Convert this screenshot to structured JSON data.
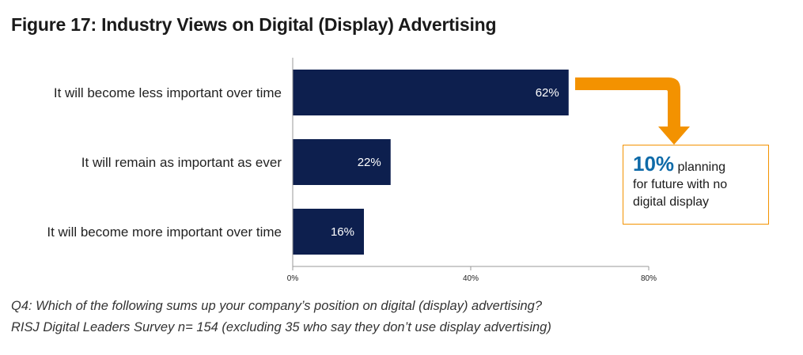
{
  "title": "Figure 17: Industry Views on Digital (Display) Advertising",
  "chart_data": {
    "type": "bar",
    "orientation": "horizontal",
    "categories": [
      "It will become less important over time",
      "It will remain as important as ever",
      "It will become more important over time"
    ],
    "values": [
      62,
      22,
      16
    ],
    "value_labels": [
      "62%",
      "22%",
      "16%"
    ],
    "xlim": [
      0,
      80
    ],
    "xticks": [
      0,
      40,
      80
    ],
    "xtick_labels": [
      "0%",
      "40%",
      "80%"
    ],
    "bar_color": "#0d1f4e",
    "grid": false
  },
  "callout": {
    "highlight": "10%",
    "text_line1": "planning",
    "text_line2": "for future with no",
    "text_line3": "digital display",
    "arrow_color": "#f39200",
    "highlight_color": "#0e6aa8"
  },
  "footnote": {
    "line1": "Q4: Which of the following sums up your company’s position on digital (display) advertising?",
    "line2": "RISJ Digital Leaders Survey n= 154 (excluding 35 who say they don’t use display advertising)"
  }
}
